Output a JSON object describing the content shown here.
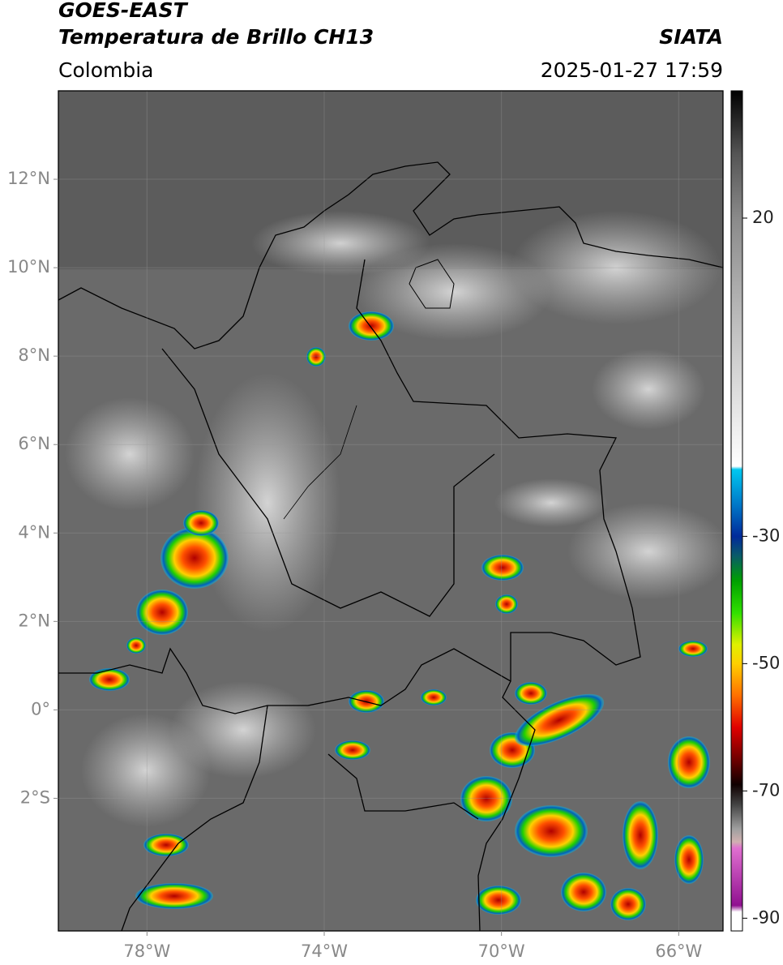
{
  "header": {
    "title": "GOES-EAST",
    "subtitle": "Temperatura de Brillo CH13",
    "source": "SIATA",
    "region": "Colombia",
    "timestamp": "2025-01-27 17:59"
  },
  "map": {
    "xlim": [
      -80,
      -65
    ],
    "ylim": [
      -5,
      14
    ],
    "grid": true,
    "xticks": [
      {
        "value": -78,
        "label": "78°W"
      },
      {
        "value": -74,
        "label": "74°W"
      },
      {
        "value": -70,
        "label": "70°W"
      },
      {
        "value": -66,
        "label": "66°W"
      }
    ],
    "yticks": [
      {
        "value": 12,
        "label": "12°N"
      },
      {
        "value": 10,
        "label": "10°N"
      },
      {
        "value": 8,
        "label": "8°N"
      },
      {
        "value": 6,
        "label": "6°N"
      },
      {
        "value": 4,
        "label": "4°N"
      },
      {
        "value": 2,
        "label": "2°N"
      },
      {
        "value": 0,
        "label": "0°"
      },
      {
        "value": -2,
        "label": "2°S"
      }
    ]
  },
  "colorbar": {
    "clim": [
      -92,
      40
    ],
    "ticks": [
      20,
      -30,
      -50,
      -70,
      -90
    ],
    "stops": [
      {
        "value": 40,
        "color": "#000000"
      },
      {
        "value": 36,
        "color": "#222222"
      },
      {
        "value": 30,
        "color": "#555555"
      },
      {
        "value": 20,
        "color": "#8a8a8a"
      },
      {
        "value": 0,
        "color": "#c8c8c8"
      },
      {
        "value": -19,
        "color": "#ffffff"
      },
      {
        "value": -19.5,
        "color": "#00c8f0"
      },
      {
        "value": -25,
        "color": "#0078c8"
      },
      {
        "value": -30,
        "color": "#002a9a"
      },
      {
        "value": -33,
        "color": "#0a5a6a"
      },
      {
        "value": -37,
        "color": "#00a000"
      },
      {
        "value": -42,
        "color": "#30e000"
      },
      {
        "value": -47,
        "color": "#e0f000"
      },
      {
        "value": -50,
        "color": "#ffd000"
      },
      {
        "value": -55,
        "color": "#ff7000"
      },
      {
        "value": -60,
        "color": "#e00000"
      },
      {
        "value": -65,
        "color": "#700000"
      },
      {
        "value": -69,
        "color": "#100000"
      },
      {
        "value": -72,
        "color": "#404040"
      },
      {
        "value": -76,
        "color": "#a0a0a0"
      },
      {
        "value": -78,
        "color": "#d0b0b0"
      },
      {
        "value": -79,
        "color": "#e070d0"
      },
      {
        "value": -88,
        "color": "#901090"
      },
      {
        "value": -89,
        "color": "#ffffff"
      },
      {
        "value": -92,
        "color": "#ffffff"
      }
    ]
  }
}
